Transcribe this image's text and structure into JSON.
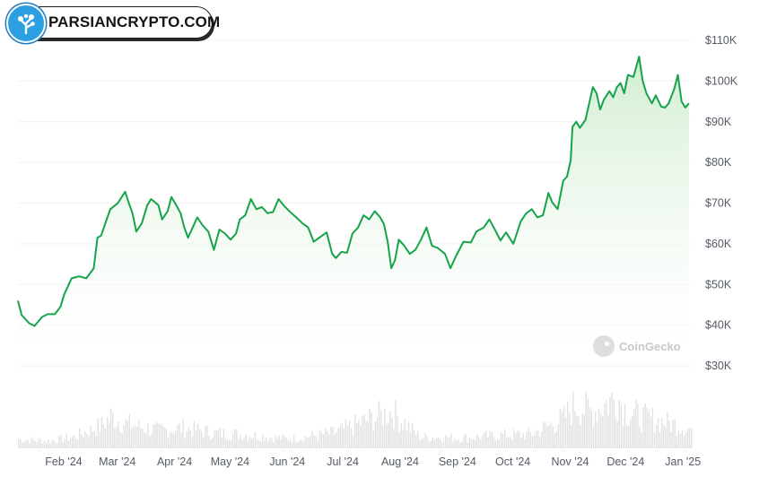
{
  "brand": {
    "text": "PARSIANCRYPTO.COM",
    "icon": "tree-logo-icon",
    "color": "#2b9fe0"
  },
  "watermark": {
    "text": "CoinGecko",
    "icon": "gecko-logo-icon"
  },
  "colors": {
    "line": "#16a34a",
    "area_top": "#cfeccf",
    "area_bottom": "#ffffff",
    "volume": "#e2e2e2",
    "grid": "#f0f0f0"
  },
  "chart_data": {
    "type": "area",
    "y_unit": "USD",
    "ylim": [
      30000,
      110000
    ],
    "y_ticks": [
      30000,
      40000,
      50000,
      60000,
      70000,
      80000,
      90000,
      100000,
      110000
    ],
    "y_tick_labels": [
      "$30K",
      "$40K",
      "$50K",
      "$60K",
      "$70K",
      "$80K",
      "$90K",
      "$100K",
      "$110K"
    ],
    "x_tick_labels": [
      "Feb '24",
      "Mar '24",
      "Apr '24",
      "May '24",
      "Jun '24",
      "Jul '24",
      "Aug '24",
      "Sep '24",
      "Oct '24",
      "Nov '24",
      "Dec '24",
      "Jan '25"
    ],
    "x_tick_dates": [
      "2024-02-01",
      "2024-03-01",
      "2024-04-01",
      "2024-05-01",
      "2024-06-01",
      "2024-07-01",
      "2024-08-01",
      "2024-09-01",
      "2024-10-01",
      "2024-11-01",
      "2024-12-01",
      "2025-01-01"
    ],
    "grid": true,
    "series": [
      {
        "values": [
          [
            "2024-01-16",
            46000
          ],
          [
            "2024-01-18",
            42500
          ],
          [
            "2024-01-22",
            40500
          ],
          [
            "2024-01-25",
            39800
          ],
          [
            "2024-01-29",
            42000
          ],
          [
            "2024-02-01",
            42700
          ],
          [
            "2024-02-05",
            42700
          ],
          [
            "2024-02-08",
            44500
          ],
          [
            "2024-02-10",
            47500
          ],
          [
            "2024-02-14",
            51500
          ],
          [
            "2024-02-18",
            52000
          ],
          [
            "2024-02-22",
            51500
          ],
          [
            "2024-02-26",
            54000
          ],
          [
            "2024-02-28",
            61500
          ],
          [
            "2024-03-01",
            62000
          ],
          [
            "2024-03-04",
            66000
          ],
          [
            "2024-03-06",
            68500
          ],
          [
            "2024-03-10",
            70000
          ],
          [
            "2024-03-14",
            72800
          ],
          [
            "2024-03-16",
            70000
          ],
          [
            "2024-03-18",
            67500
          ],
          [
            "2024-03-20",
            63000
          ],
          [
            "2024-03-23",
            65000
          ],
          [
            "2024-03-26",
            69500
          ],
          [
            "2024-03-28",
            71000
          ],
          [
            "2024-04-01",
            69500
          ],
          [
            "2024-04-03",
            66000
          ],
          [
            "2024-04-06",
            68000
          ],
          [
            "2024-04-08",
            71500
          ],
          [
            "2024-04-10",
            70000
          ],
          [
            "2024-04-13",
            67500
          ],
          [
            "2024-04-15",
            64000
          ],
          [
            "2024-04-17",
            61500
          ],
          [
            "2024-04-19",
            63500
          ],
          [
            "2024-04-22",
            66500
          ],
          [
            "2024-04-25",
            64500
          ],
          [
            "2024-04-28",
            63000
          ],
          [
            "2024-05-01",
            58500
          ],
          [
            "2024-05-04",
            63500
          ],
          [
            "2024-05-07",
            62500
          ],
          [
            "2024-05-10",
            61000
          ],
          [
            "2024-05-13",
            62500
          ],
          [
            "2024-05-15",
            66000
          ],
          [
            "2024-05-18",
            67000
          ],
          [
            "2024-05-21",
            71000
          ],
          [
            "2024-05-24",
            68500
          ],
          [
            "2024-05-27",
            69000
          ],
          [
            "2024-05-30",
            67500
          ],
          [
            "2024-06-02",
            67800
          ],
          [
            "2024-06-05",
            71000
          ],
          [
            "2024-06-08",
            69300
          ],
          [
            "2024-06-12",
            67500
          ],
          [
            "2024-06-15",
            66300
          ],
          [
            "2024-06-18",
            65000
          ],
          [
            "2024-06-21",
            64000
          ],
          [
            "2024-06-24",
            60500
          ],
          [
            "2024-06-27",
            61500
          ],
          [
            "2024-07-01",
            62800
          ],
          [
            "2024-07-04",
            57500
          ],
          [
            "2024-07-06",
            56500
          ],
          [
            "2024-07-09",
            58000
          ],
          [
            "2024-07-12",
            57800
          ],
          [
            "2024-07-15",
            62500
          ],
          [
            "2024-07-18",
            64000
          ],
          [
            "2024-07-21",
            67000
          ],
          [
            "2024-07-24",
            66000
          ],
          [
            "2024-07-27",
            68000
          ],
          [
            "2024-07-30",
            66500
          ],
          [
            "2024-08-01",
            64800
          ],
          [
            "2024-08-03",
            60500
          ],
          [
            "2024-08-05",
            54000
          ],
          [
            "2024-08-07",
            56000
          ],
          [
            "2024-08-09",
            61000
          ],
          [
            "2024-08-12",
            59500
          ],
          [
            "2024-08-15",
            57500
          ],
          [
            "2024-08-18",
            58500
          ],
          [
            "2024-08-21",
            61000
          ],
          [
            "2024-08-24",
            64000
          ],
          [
            "2024-08-27",
            59500
          ],
          [
            "2024-08-30",
            59000
          ],
          [
            "2024-09-03",
            57500
          ],
          [
            "2024-09-06",
            54000
          ],
          [
            "2024-09-09",
            57000
          ],
          [
            "2024-09-13",
            60500
          ],
          [
            "2024-09-17",
            60300
          ],
          [
            "2024-09-20",
            63000
          ],
          [
            "2024-09-24",
            64000
          ],
          [
            "2024-09-27",
            66000
          ],
          [
            "2024-09-30",
            63500
          ],
          [
            "2024-10-03",
            60800
          ],
          [
            "2024-10-06",
            62800
          ],
          [
            "2024-10-10",
            60000
          ],
          [
            "2024-10-14",
            65500
          ],
          [
            "2024-10-17",
            67500
          ],
          [
            "2024-10-20",
            68500
          ],
          [
            "2024-10-23",
            66500
          ],
          [
            "2024-10-26",
            67000
          ],
          [
            "2024-10-29",
            72500
          ],
          [
            "2024-10-31",
            70200
          ],
          [
            "2024-11-03",
            68500
          ],
          [
            "2024-11-06",
            75500
          ],
          [
            "2024-11-08",
            76500
          ],
          [
            "2024-11-10",
            80500
          ],
          [
            "2024-11-11",
            88700
          ],
          [
            "2024-11-13",
            90000
          ],
          [
            "2024-11-15",
            88500
          ],
          [
            "2024-11-18",
            90500
          ],
          [
            "2024-11-20",
            94500
          ],
          [
            "2024-11-22",
            98500
          ],
          [
            "2024-11-24",
            97000
          ],
          [
            "2024-11-26",
            93000
          ],
          [
            "2024-11-28",
            95500
          ],
          [
            "2024-12-01",
            97500
          ],
          [
            "2024-12-03",
            96000
          ],
          [
            "2024-12-05",
            98500
          ],
          [
            "2024-12-07",
            99500
          ],
          [
            "2024-12-09",
            97000
          ],
          [
            "2024-12-11",
            101500
          ],
          [
            "2024-12-14",
            101000
          ],
          [
            "2024-12-17",
            106000
          ],
          [
            "2024-12-19",
            100000
          ],
          [
            "2024-12-21",
            97000
          ],
          [
            "2024-12-24",
            94500
          ],
          [
            "2024-12-26",
            96500
          ],
          [
            "2024-12-29",
            93700
          ],
          [
            "2024-12-31",
            93500
          ],
          [
            "2025-01-02",
            94500
          ],
          [
            "2025-01-05",
            98000
          ],
          [
            "2025-01-07",
            101500
          ],
          [
            "2025-01-09",
            95000
          ],
          [
            "2025-01-11",
            93500
          ],
          [
            "2025-01-13",
            94500
          ]
        ]
      }
    ],
    "volume_estimates": [
      [
        "2024-01-16",
        0.18
      ],
      [
        "2024-02-01",
        0.14
      ],
      [
        "2024-02-15",
        0.22
      ],
      [
        "2024-03-01",
        0.45
      ],
      [
        "2024-03-06",
        0.62
      ],
      [
        "2024-03-14",
        0.48
      ],
      [
        "2024-04-01",
        0.34
      ],
      [
        "2024-04-13",
        0.4
      ],
      [
        "2024-05-01",
        0.3
      ],
      [
        "2024-05-21",
        0.26
      ],
      [
        "2024-06-10",
        0.18
      ],
      [
        "2024-07-05",
        0.3
      ],
      [
        "2024-08-05",
        0.72
      ],
      [
        "2024-08-20",
        0.22
      ],
      [
        "2024-09-10",
        0.2
      ],
      [
        "2024-10-01",
        0.25
      ],
      [
        "2024-10-20",
        0.28
      ],
      [
        "2024-11-06",
        0.58
      ],
      [
        "2024-11-12",
        0.85
      ],
      [
        "2024-11-21",
        0.7
      ],
      [
        "2024-12-05",
        1.0
      ],
      [
        "2024-12-10",
        0.72
      ],
      [
        "2024-12-19",
        0.6
      ],
      [
        "2025-01-07",
        0.45
      ],
      [
        "2025-01-13",
        0.38
      ]
    ]
  }
}
